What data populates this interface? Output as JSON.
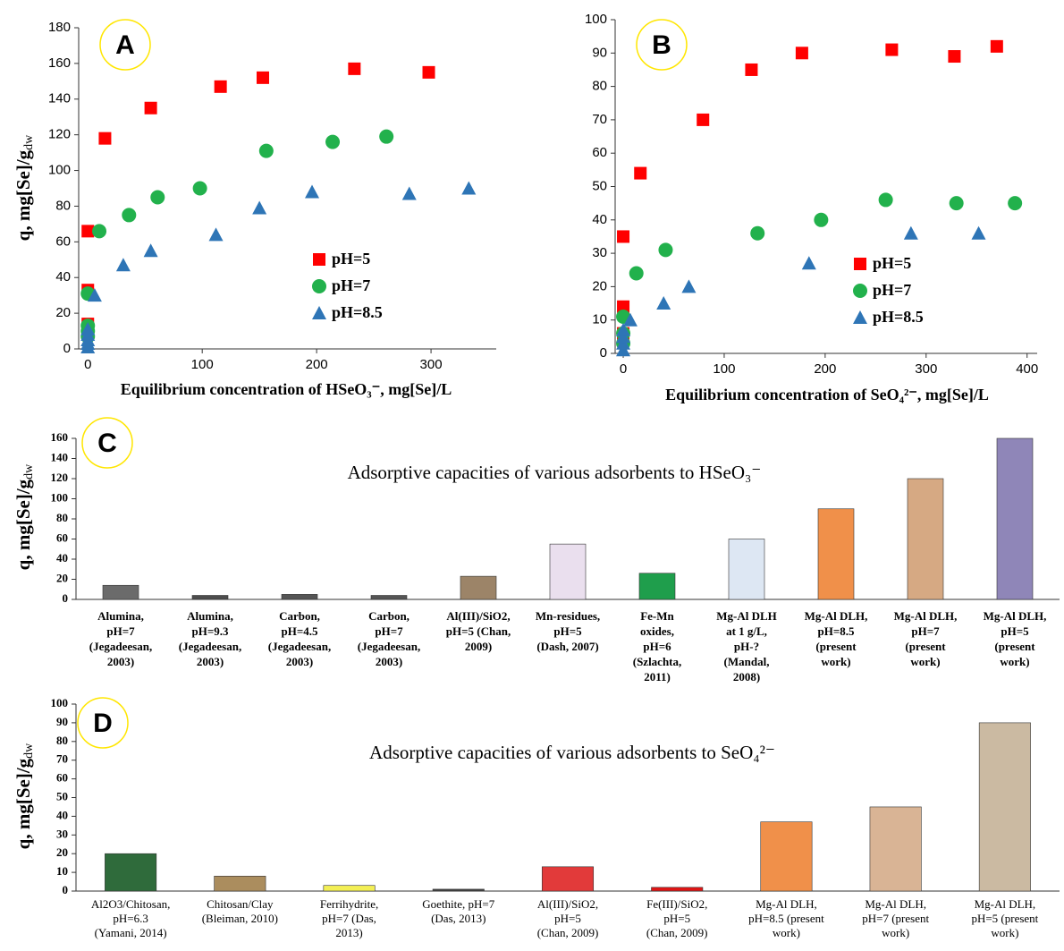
{
  "chart_data": [
    {
      "type": "scatter",
      "panel": "A",
      "x_label": "Equilibrium concentration of HSeO₃⁻, mg[Se]/L",
      "y_label": "q, mg[Se]/g",
      "y_label_sub": "dw",
      "xlim": [
        -8,
        357
      ],
      "xticks": [
        0,
        100,
        200,
        300
      ],
      "ylim": [
        0,
        180
      ],
      "yticks": [
        0,
        20,
        40,
        60,
        80,
        100,
        120,
        140,
        160,
        180
      ],
      "grid": false,
      "legend": "lower right",
      "series": [
        {
          "name": "pH=5",
          "color": "#ff0000",
          "marker": "square",
          "x": [
            0,
            0,
            0,
            15,
            55,
            116,
            153,
            233,
            298
          ],
          "values": [
            66,
            33,
            14,
            118,
            135,
            147,
            152,
            157,
            155
          ]
        },
        {
          "name": "pH=7",
          "color": "#22b14c",
          "marker": "circle",
          "x": [
            0,
            0,
            0,
            0,
            10,
            36,
            61,
            98,
            156,
            214,
            261
          ],
          "values": [
            31,
            13,
            10,
            7,
            66,
            75,
            85,
            90,
            111,
            116,
            119
          ]
        },
        {
          "name": "pH=8.5",
          "color": "#2e75b6",
          "marker": "triangle",
          "x": [
            0,
            0,
            0,
            0,
            0,
            6,
            31,
            55,
            112,
            150,
            196,
            281,
            333
          ],
          "values": [
            1,
            3,
            5,
            8,
            11,
            30,
            47,
            55,
            64,
            79,
            88,
            87,
            90
          ]
        }
      ]
    },
    {
      "type": "scatter",
      "panel": "B",
      "x_label": "Equilibrium concentration of SeO₄²⁻, mg[Se]/L",
      "xlim": [
        -8,
        410
      ],
      "xticks": [
        0,
        100,
        200,
        300,
        400
      ],
      "ylim": [
        0,
        100
      ],
      "yticks": [
        0,
        10,
        20,
        30,
        40,
        50,
        60,
        70,
        80,
        90,
        100
      ],
      "grid": false,
      "legend": "lower right",
      "series": [
        {
          "name": "pH=5",
          "color": "#ff0000",
          "marker": "square",
          "x": [
            0,
            0,
            0,
            17,
            79,
            127,
            177,
            266,
            328,
            370
          ],
          "values": [
            35,
            14,
            6,
            54,
            70,
            85,
            90,
            91,
            89,
            92
          ]
        },
        {
          "name": "pH=7",
          "color": "#22b14c",
          "marker": "circle",
          "x": [
            0,
            0,
            0,
            13,
            42,
            133,
            196,
            260,
            330,
            388
          ],
          "values": [
            11,
            6,
            3,
            24,
            31,
            36,
            40,
            46,
            45,
            45
          ]
        },
        {
          "name": "pH=8.5",
          "color": "#2e75b6",
          "marker": "triangle",
          "x": [
            0,
            0,
            0,
            0,
            7,
            40,
            65,
            184,
            285,
            352
          ],
          "values": [
            1,
            3,
            5,
            7,
            10,
            15,
            20,
            27,
            36,
            36
          ]
        }
      ]
    },
    {
      "type": "bar",
      "panel": "C",
      "title": "Adsorptive capacities of various adsorbents to HSeO₃⁻",
      "y_label": "q, mg[Se]/g",
      "y_label_sub": "dw",
      "categories": [
        "Alumina,\npH=7\n(Jegadeesan,\n2003)",
        "Alumina,\npH=9.3\n(Jegadeesan,\n2003)",
        "Carbon,\npH=4.5\n(Jegadeesan,\n2003)",
        "Carbon,\npH=7\n(Jegadeesan,\n2003)",
        "Al(III)/SiO2,\npH=5 (Chan,\n2009)",
        "Mn-residues,\npH=5\n(Dash, 2007)",
        "Fe-Mn\noxides,\npH=6\n(Szlachta,\n2011)",
        "Mg-Al DLH\nat 1 g/L,\npH-?\n(Mandal,\n2008)",
        "Mg-Al DLH,\npH=8.5\n(present\nwork)",
        "Mg-Al DLH,\npH=7\n(present\nwork)",
        "Mg-Al DLH,\npH=5\n(present\nwork)"
      ],
      "values": [
        14,
        4,
        5,
        4,
        23,
        55,
        26,
        60,
        90,
        120,
        160
      ],
      "colors": [
        "#6b6b6b",
        "#4d4d4d",
        "#555555",
        "#555555",
        "#9c8468",
        "#eadfee",
        "#1f9e4c",
        "#dde7f3",
        "#f0904a",
        "#d6a983",
        "#8f86b8"
      ],
      "ylim": [
        0,
        160
      ],
      "yticks": [
        0,
        20,
        40,
        60,
        80,
        100,
        120,
        140,
        160
      ],
      "grid": false
    },
    {
      "type": "bar",
      "panel": "D",
      "title": "Adsorptive capacities of various adsorbents to SeO₄²⁻",
      "y_label": "q, mg[Se]/g",
      "y_label_sub": "dw",
      "categories": [
        "Al2O3/Chitosan,\npH=6.3\n(Yamani, 2014)",
        "Chitosan/Clay\n(Bleiman, 2010)",
        "Ferrihydrite,\npH=7 (Das,\n2013)",
        "Goethite,  pH=7\n(Das, 2013)",
        "Al(III)/SiO2,\npH=5\n(Chan, 2009)",
        "Fe(III)/SiO2,\npH=5\n(Chan, 2009)",
        "Mg-Al DLH,\npH=8.5 (present\nwork)",
        "Mg-Al DLH,\npH=7 (present\nwork)",
        "Mg-Al DLH,\npH=5 (present\nwork)"
      ],
      "values": [
        20,
        8,
        3,
        1,
        13,
        2,
        37,
        45,
        90
      ],
      "colors": [
        "#2f6b3b",
        "#ab8d5e",
        "#f3ef55",
        "#444444",
        "#e23a3a",
        "#e01515",
        "#f0904a",
        "#d9b495",
        "#cbbaa2"
      ],
      "ylim": [
        0,
        100
      ],
      "yticks": [
        0,
        10,
        20,
        30,
        40,
        50,
        60,
        70,
        80,
        90,
        100
      ],
      "grid": false
    }
  ]
}
